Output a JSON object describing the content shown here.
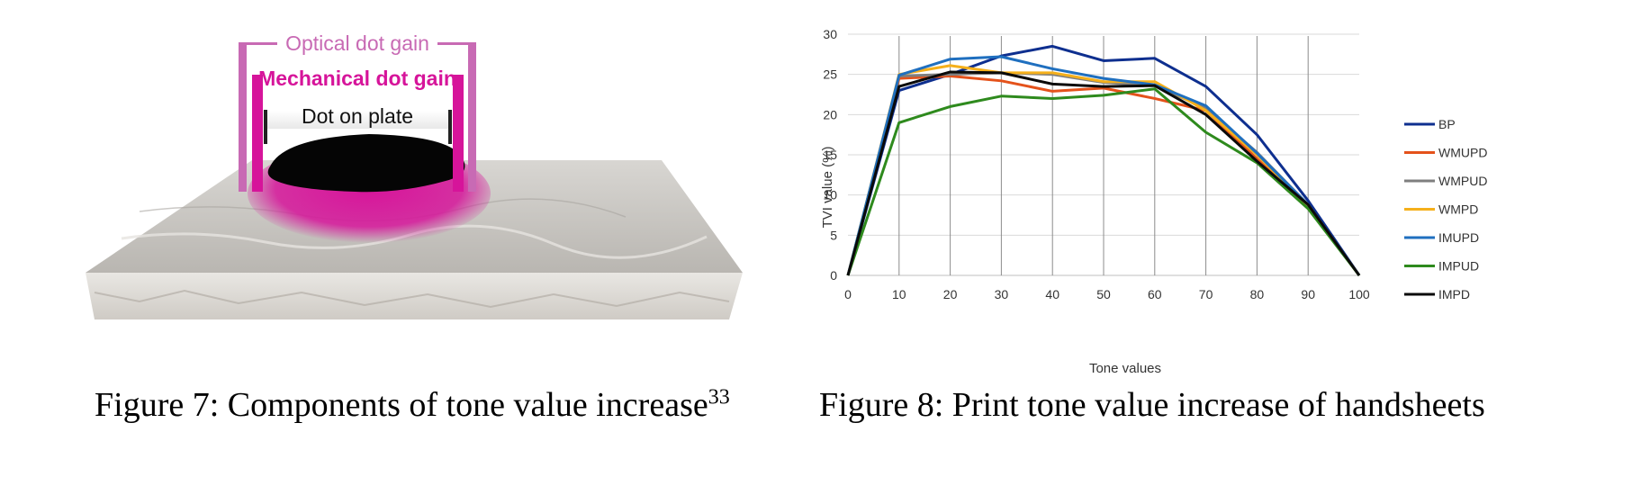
{
  "figure7": {
    "labels": {
      "optical": "Optical dot gain",
      "mechanical": "Mechanical dot gain",
      "plate": "Dot on plate"
    },
    "caption": "Figure 7: Components of tone value increase",
    "caption_ref": "33",
    "colors": {
      "magenta": "#d6149a",
      "optical_bar": "#c86ab4",
      "substrate": "#c9c6c1"
    }
  },
  "figure8": {
    "caption": "Figure 8: Print tone value increase of handsheets"
  },
  "chart_data": {
    "type": "line",
    "xlabel": "Tone values",
    "ylabel": "TVI value (%)",
    "x": [
      0,
      10,
      20,
      30,
      40,
      50,
      60,
      70,
      80,
      90,
      100
    ],
    "xlim": [
      0,
      100
    ],
    "ylim": [
      0,
      30
    ],
    "yticks": [
      0,
      5,
      10,
      15,
      20,
      25,
      30
    ],
    "grid": {
      "horizontal": true,
      "vertical": true
    },
    "legend_position": "right",
    "series": [
      {
        "name": "BP",
        "color": "#0e2f8f",
        "values": [
          0,
          23,
          25,
          27.3,
          28.5,
          26.7,
          27,
          23.5,
          17.5,
          9.3,
          0
        ]
      },
      {
        "name": "WMUPD",
        "color": "#e4521b",
        "values": [
          0,
          24.5,
          24.8,
          24.2,
          22.9,
          23.3,
          22,
          20.5,
          14.5,
          8.5,
          0
        ]
      },
      {
        "name": "WMPUD",
        "color": "#7f7f7f",
        "values": [
          0,
          24.8,
          25,
          25.2,
          25,
          24,
          23.6,
          20.8,
          15.3,
          8.8,
          0
        ]
      },
      {
        "name": "WMPD",
        "color": "#f5b01b",
        "values": [
          0,
          25,
          26.1,
          25.2,
          25.2,
          24.1,
          24.1,
          20.5,
          15,
          8.7,
          0
        ]
      },
      {
        "name": "IMUPD",
        "color": "#1f6fbf",
        "values": [
          0,
          24.9,
          26.9,
          27.2,
          25.7,
          24.5,
          23.7,
          21.1,
          15.2,
          8.8,
          0
        ]
      },
      {
        "name": "IMPUD",
        "color": "#2e8a1d",
        "values": [
          0,
          19,
          21,
          22.3,
          22,
          22.4,
          23.2,
          17.8,
          14,
          8.3,
          0
        ]
      },
      {
        "name": "IMPD",
        "color": "#0a0a0a",
        "values": [
          0,
          23.5,
          25.3,
          25.2,
          23.8,
          23.5,
          23.6,
          20,
          14.2,
          8.8,
          0
        ]
      }
    ]
  }
}
